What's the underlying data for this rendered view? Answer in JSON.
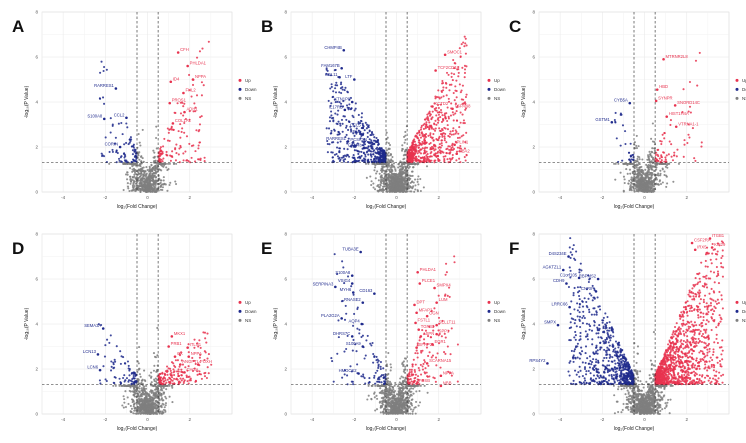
{
  "chart_data": [
    {
      "panel": "A",
      "type": "scatter",
      "xlabel": "log₂(Fold Change)",
      "ylabel": "-log₁₀(P Value)",
      "xlim": [
        -5,
        4
      ],
      "ylim": [
        0,
        8
      ],
      "xticks": [
        "-4",
        "-2",
        "0",
        "2"
      ],
      "yticks": [
        "0",
        "2",
        "4",
        "6",
        "8"
      ],
      "fc_cutoff": 0.5,
      "p_cutoff": 1.3,
      "legend": [
        "Up",
        "Down",
        "NS"
      ],
      "colors": {
        "up": "#e8334f",
        "down": "#1f2a8c",
        "ns": "#7f7f7f"
      },
      "point_counts": {
        "up": 130,
        "down": 90,
        "ns": 650
      },
      "spread": {
        "up": [
          2.4,
          6.2
        ],
        "down": [
          1.8,
          4.8
        ]
      },
      "genes_up": [
        {
          "name": "CFH",
          "x": 1.45,
          "y": 6.2
        },
        {
          "name": "PHLDA1",
          "x": 1.9,
          "y": 5.6
        },
        {
          "name": "NPPA",
          "x": 2.15,
          "y": 5.0
        },
        {
          "name": "ID4",
          "x": 1.1,
          "y": 4.9
        },
        {
          "name": "FHL2",
          "x": 1.7,
          "y": 4.4
        },
        {
          "name": "PROS1",
          "x": 1.05,
          "y": 3.95
        },
        {
          "name": "ADH1",
          "x": 1.75,
          "y": 3.55
        },
        {
          "name": "COL1A1",
          "x": 1.2,
          "y": 3.05
        }
      ],
      "genes_down": [
        {
          "name": "RARRES1",
          "x": -1.5,
          "y": 4.6
        },
        {
          "name": "S100A8",
          "x": -2.05,
          "y": 3.25
        },
        {
          "name": "CCL2",
          "x": -1.0,
          "y": 3.3
        },
        {
          "name": "CORIN",
          "x": -1.3,
          "y": 2.0
        }
      ]
    },
    {
      "panel": "B",
      "type": "scatter",
      "xlabel": "log₂(Fold Change)",
      "ylabel": "-log₁₀(P Value)",
      "xlim": [
        -5,
        4
      ],
      "ylim": [
        0,
        8
      ],
      "xticks": [
        "-4",
        "-2",
        "0",
        "2"
      ],
      "yticks": [
        "0",
        "2",
        "4",
        "6",
        "8"
      ],
      "fc_cutoff": 0.5,
      "p_cutoff": 1.3,
      "legend": [
        "Up",
        "Down",
        "NS"
      ],
      "colors": {
        "up": "#e8334f",
        "down": "#1f2a8c",
        "ns": "#7f7f7f"
      },
      "point_counts": {
        "up": 650,
        "down": 480,
        "ns": 900
      },
      "spread": {
        "up": [
          2.8,
          5.4
        ],
        "down": [
          2.8,
          4.4
        ]
      },
      "genes_up": [
        {
          "name": "SMOC1",
          "x": 2.3,
          "y": 6.1
        },
        {
          "name": "TCF2CD3",
          "x": 1.85,
          "y": 5.4
        },
        {
          "name": "KCTD2",
          "x": 1.7,
          "y": 3.8
        },
        {
          "name": "TSPAN8",
          "x": 2.65,
          "y": 3.7
        },
        {
          "name": "PLIN1",
          "x": 2.75,
          "y": 2.1
        },
        {
          "name": "HBA2",
          "x": 2.85,
          "y": 1.7
        }
      ],
      "genes_down": [
        {
          "name": "CHMP4B",
          "x": -2.5,
          "y": 6.3
        },
        {
          "name": "FAM167B",
          "x": -2.6,
          "y": 5.5
        },
        {
          "name": "CCL11",
          "x": -2.7,
          "y": 5.1
        },
        {
          "name": "LTF",
          "x": -2.0,
          "y": 5.0
        },
        {
          "name": "KTN1P9",
          "x": -2.1,
          "y": 4.0
        },
        {
          "name": "IL17RB",
          "x": -2.45,
          "y": 3.65
        },
        {
          "name": "CCL5",
          "x": -1.6,
          "y": 2.85
        },
        {
          "name": "SELE",
          "x": -1.6,
          "y": 2.55
        },
        {
          "name": "RARRES1",
          "x": -2.3,
          "y": 2.25
        },
        {
          "name": "PCSK1N",
          "x": -1.3,
          "y": 2.2
        },
        {
          "name": "CAM4b",
          "x": -1.55,
          "y": 1.95
        }
      ]
    },
    {
      "panel": "C",
      "type": "scatter",
      "xlabel": "log₂(Fold Change)",
      "ylabel": "-log₁₀(P Value)",
      "xlim": [
        -5,
        4
      ],
      "ylim": [
        0,
        8
      ],
      "xticks": [
        "-4",
        "-2",
        "0",
        "2"
      ],
      "yticks": [
        "0",
        "2",
        "4",
        "6",
        "8"
      ],
      "fc_cutoff": 0.5,
      "p_cutoff": 1.3,
      "legend": [
        "Up",
        "Down",
        "NS"
      ],
      "colors": {
        "up": "#e8334f",
        "down": "#1f2a8c",
        "ns": "#7f7f7f"
      },
      "point_counts": {
        "up": 70,
        "down": 30,
        "ns": 650
      },
      "spread": {
        "up": [
          2.2,
          5.2
        ],
        "down": [
          0.9,
          3.6
        ]
      },
      "genes_up": [
        {
          "name": "MTRNR2L8",
          "x": 0.9,
          "y": 5.9
        },
        {
          "name": "HBD",
          "x": 0.6,
          "y": 4.55
        },
        {
          "name": "SYNPR",
          "x": 0.55,
          "y": 4.05
        },
        {
          "name": "SNORD14C",
          "x": 1.45,
          "y": 3.85
        },
        {
          "name": "HIST1H4A",
          "x": 1.05,
          "y": 3.35
        },
        {
          "name": "VTRNA1-1",
          "x": 1.5,
          "y": 2.9
        }
      ],
      "genes_down": [
        {
          "name": "CYB5A",
          "x": -0.7,
          "y": 3.95
        },
        {
          "name": "GSTM1",
          "x": -1.55,
          "y": 3.1
        }
      ]
    },
    {
      "panel": "D",
      "type": "scatter",
      "xlabel": "log₂(Fold Change)",
      "ylabel": "-log₁₀(P Value)",
      "xlim": [
        -5,
        4
      ],
      "ylim": [
        0,
        8
      ],
      "xticks": [
        "-4",
        "-2",
        "0",
        "2"
      ],
      "yticks": [
        "0",
        "2",
        "4",
        "6",
        "8"
      ],
      "fc_cutoff": 0.5,
      "p_cutoff": 1.3,
      "legend": [
        "Up",
        "Down",
        "NS"
      ],
      "colors": {
        "up": "#e8334f",
        "down": "#1f2a8c",
        "ns": "#7f7f7f"
      },
      "point_counts": {
        "up": 180,
        "down": 80,
        "ns": 750
      },
      "spread": {
        "up": [
          2.5,
          2.4
        ],
        "down": [
          1.8,
          2.6
        ]
      },
      "genes_up": [
        {
          "name": "MKX1",
          "x": 1.15,
          "y": 3.45
        },
        {
          "name": "PRB1",
          "x": 1.0,
          "y": 3.0
        },
        {
          "name": "ITLN1",
          "x": 1.9,
          "y": 2.95
        },
        {
          "name": "CX",
          "x": 1.3,
          "y": 2.55
        },
        {
          "name": "NPPA",
          "x": 1.95,
          "y": 2.55
        },
        {
          "name": "ANGPTL4",
          "x": 1.55,
          "y": 2.2
        },
        {
          "name": "FOXH",
          "x": 2.4,
          "y": 2.2
        },
        {
          "name": "CHGA",
          "x": 1.75,
          "y": 1.85
        }
      ],
      "genes_down": [
        {
          "name": "SEMA3A",
          "x": -2.1,
          "y": 3.8
        },
        {
          "name": "LCN13",
          "x": -2.35,
          "y": 2.65
        },
        {
          "name": "LCN6",
          "x": -2.25,
          "y": 1.95
        }
      ]
    },
    {
      "panel": "E",
      "type": "scatter",
      "xlabel": "log₂(Fold Change)",
      "ylabel": "-log₁₀(P Value)",
      "xlim": [
        -5,
        4
      ],
      "ylim": [
        0,
        8
      ],
      "xticks": [
        "-4",
        "-2",
        "0",
        "2"
      ],
      "yticks": [
        "0",
        "2",
        "4",
        "6",
        "8"
      ],
      "fc_cutoff": 0.5,
      "p_cutoff": 1.3,
      "legend": [
        "Up",
        "Down",
        "NS"
      ],
      "colors": {
        "up": "#e8334f",
        "down": "#1f2a8c",
        "ns": "#7f7f7f"
      },
      "point_counts": {
        "up": 140,
        "down": 110,
        "ns": 750
      },
      "spread": {
        "up": [
          2.4,
          6.8
        ],
        "down": [
          2.6,
          6.4
        ]
      },
      "genes_up": [
        {
          "name": "PHLDA1",
          "x": 1.0,
          "y": 6.3
        },
        {
          "name": "PLCE1",
          "x": 1.1,
          "y": 5.8
        },
        {
          "name": "SMPX4",
          "x": 1.8,
          "y": 5.6
        },
        {
          "name": "LUM",
          "x": 1.9,
          "y": 4.95
        },
        {
          "name": "DPT",
          "x": 0.85,
          "y": 4.85
        },
        {
          "name": "MFAP2",
          "x": 0.95,
          "y": 4.5
        },
        {
          "name": "OGN",
          "x": 1.45,
          "y": 4.35
        },
        {
          "name": "FSTL1",
          "x": 0.9,
          "y": 4.05
        },
        {
          "name": "SELLT11",
          "x": 1.9,
          "y": 3.95
        },
        {
          "name": "TGFB3",
          "x": 1.05,
          "y": 3.75
        },
        {
          "name": "SPP1",
          "x": 1.9,
          "y": 3.55
        },
        {
          "name": "ASPN",
          "x": 1.15,
          "y": 3.45
        },
        {
          "name": "EGR1",
          "x": 1.7,
          "y": 3.1
        },
        {
          "name": "SFRP2",
          "x": 0.95,
          "y": 2.95
        },
        {
          "name": "SCARNA15",
          "x": 1.45,
          "y": 2.25
        },
        {
          "name": "NPPA",
          "x": 2.1,
          "y": 1.7
        },
        {
          "name": "NBB",
          "x": 2.1,
          "y": 1.25
        },
        {
          "name": "FOSB",
          "x": 0.95,
          "y": 1.35
        }
      ],
      "genes_down": [
        {
          "name": "TUBA3E",
          "x": -1.7,
          "y": 7.2
        },
        {
          "name": "S100A8",
          "x": -2.1,
          "y": 6.15
        },
        {
          "name": "VSIG4",
          "x": -2.1,
          "y": 5.8
        },
        {
          "name": "SERPINA3",
          "x": -2.9,
          "y": 5.65
        },
        {
          "name": "MYH6",
          "x": -2.05,
          "y": 5.4
        },
        {
          "name": "CD163",
          "x": -1.05,
          "y": 5.35
        },
        {
          "name": "RNASE2",
          "x": -1.6,
          "y": 4.95
        },
        {
          "name": "PLA2G2A",
          "x": -2.6,
          "y": 4.25
        },
        {
          "name": "AQP4",
          "x": -1.65,
          "y": 4.0
        },
        {
          "name": "DHRS7C",
          "x": -2.1,
          "y": 3.45
        },
        {
          "name": "S100A9",
          "x": -1.6,
          "y": 3.0
        },
        {
          "name": "HMGCS2",
          "x": -1.8,
          "y": 1.8
        }
      ]
    },
    {
      "panel": "F",
      "type": "scatter",
      "xlabel": "log₂(Fold Change)",
      "ylabel": "-log₁₀(P Value)",
      "xlim": [
        -5,
        4
      ],
      "ylim": [
        0,
        8
      ],
      "xticks": [
        "-4",
        "-2",
        "0",
        "2"
      ],
      "yticks": [
        "0",
        "2",
        "4",
        "6",
        "8"
      ],
      "fc_cutoff": 0.5,
      "p_cutoff": 1.3,
      "legend": [
        "Up",
        "Down",
        "NS"
      ],
      "colors": {
        "up": "#e8334f",
        "down": "#1f2a8c",
        "ns": "#7f7f7f"
      },
      "point_counts": {
        "up": 1200,
        "down": 700,
        "ns": 900
      },
      "spread": {
        "up": [
          3.2,
          7.4
        ],
        "down": [
          3.1,
          6.4
        ]
      },
      "genes_up": [
        {
          "name": "CSF2RA",
          "x": 2.25,
          "y": 7.6
        },
        {
          "name": "IRX5",
          "x": 2.4,
          "y": 7.3
        },
        {
          "name": "ITGB1",
          "x": 3.1,
          "y": 7.8
        },
        {
          "name": "KIF29",
          "x": 3.2,
          "y": 7.4
        }
      ],
      "genes_down": [
        {
          "name": "D4S234E",
          "x": -3.6,
          "y": 7.0
        },
        {
          "name": "AGKTZL1",
          "x": -3.85,
          "y": 6.4
        },
        {
          "name": "C1orf105",
          "x": -3.1,
          "y": 6.05
        },
        {
          "name": "RBPMS2",
          "x": -2.2,
          "y": 6.0
        },
        {
          "name": "CDH9",
          "x": -3.7,
          "y": 5.8
        },
        {
          "name": "CNRIP",
          "x": -2.3,
          "y": 5.45
        },
        {
          "name": "LRRC66",
          "x": -3.55,
          "y": 4.75
        },
        {
          "name": "SMPX",
          "x": -4.1,
          "y": 3.95
        },
        {
          "name": "RPS4Y2",
          "x": -4.6,
          "y": 2.25
        }
      ]
    }
  ]
}
